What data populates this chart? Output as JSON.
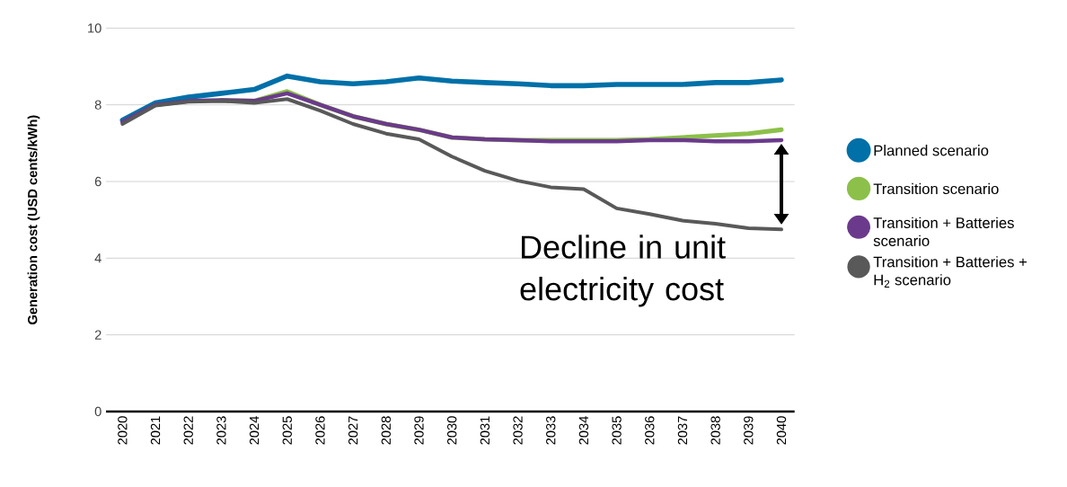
{
  "chart_data": {
    "type": "line",
    "ylabel": "Generation cost (USD cents/kWh)",
    "categories": [
      "2020",
      "2021",
      "2022",
      "2023",
      "2024",
      "2025",
      "2026",
      "2027",
      "2028",
      "2029",
      "2030",
      "2031",
      "2032",
      "2033",
      "2034",
      "2035",
      "2036",
      "2037",
      "2038",
      "2039",
      "2040"
    ],
    "series": [
      {
        "name": "Planned scenario",
        "color": "#0070a8",
        "values": [
          7.6,
          8.05,
          8.2,
          8.3,
          8.4,
          8.75,
          8.6,
          8.55,
          8.6,
          8.7,
          8.62,
          8.58,
          8.55,
          8.5,
          8.5,
          8.53,
          8.53,
          8.53,
          8.58,
          8.58,
          8.65
        ]
      },
      {
        "name": "Transition scenario",
        "color": "#8cc04a",
        "values": [
          null,
          null,
          null,
          8.12,
          8.1,
          8.35,
          8.0,
          7.7,
          7.5,
          7.35,
          7.15,
          7.1,
          7.08,
          7.08,
          7.08,
          7.08,
          7.1,
          7.15,
          7.2,
          7.25,
          7.35
        ]
      },
      {
        "name": "Transition + Batteries scenario",
        "color": "#6b3a8c",
        "values": [
          7.55,
          8.0,
          8.1,
          8.12,
          8.1,
          8.3,
          8.0,
          7.7,
          7.5,
          7.35,
          7.15,
          7.1,
          7.08,
          7.05,
          7.05,
          7.05,
          7.08,
          7.08,
          7.05,
          7.05,
          7.08
        ]
      },
      {
        "name": "Transition + Batteries + H$_{2}$ scenario",
        "color": "#595959",
        "values": [
          7.5,
          7.98,
          8.08,
          8.1,
          8.05,
          8.15,
          7.85,
          7.5,
          7.25,
          7.1,
          6.65,
          6.28,
          6.02,
          5.85,
          5.8,
          5.3,
          5.15,
          4.98,
          4.9,
          4.78,
          4.75
        ]
      }
    ],
    "ylim": [
      0,
      10
    ],
    "yticks": [
      0,
      2,
      4,
      6,
      8,
      10
    ],
    "grid": "y",
    "legend": "right",
    "marker": "none",
    "line_style": "solid",
    "annotations": [
      "Decline in unit electricity cost"
    ]
  }
}
